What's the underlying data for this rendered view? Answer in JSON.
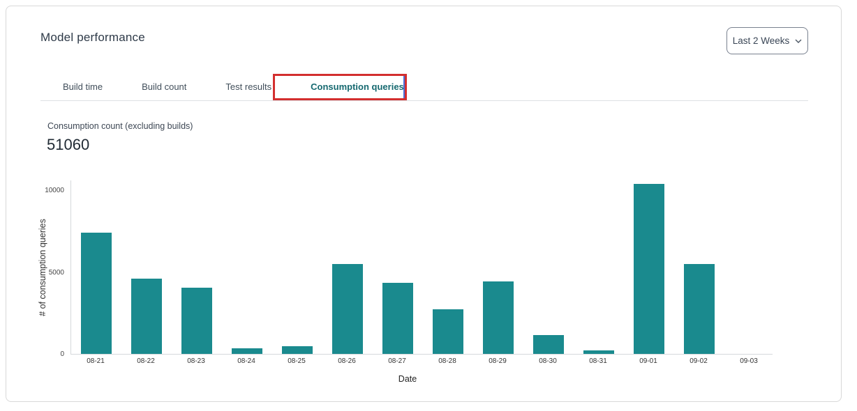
{
  "header": {
    "title": "Model performance"
  },
  "date_range_selector": {
    "value": "Last 2 Weeks",
    "icon": "chevron-down-icon"
  },
  "tabs": {
    "items": [
      {
        "label": "Build time",
        "active": false
      },
      {
        "label": "Build count",
        "active": false
      },
      {
        "label": "Test results",
        "active": false
      },
      {
        "label": "Consumption queries",
        "active": true
      }
    ]
  },
  "annotation": {
    "type": "highlight-box",
    "target": "Consumption queries tab",
    "color": "#d32f2f"
  },
  "metric": {
    "label": "Consumption count (excluding builds)",
    "value": "51060"
  },
  "colors": {
    "bar": "#1a8a8e",
    "active_tab_text": "#166970",
    "card_border": "#d8d8d8",
    "axis_line": "#d5d8db",
    "annotation_red": "#d32f2f"
  },
  "chart_data": {
    "type": "bar",
    "title": "",
    "categories": [
      "08-21",
      "08-22",
      "08-23",
      "08-24",
      "08-25",
      "08-26",
      "08-27",
      "08-28",
      "08-29",
      "08-30",
      "08-31",
      "09-01",
      "09-02",
      "09-03"
    ],
    "values": [
      7400,
      4600,
      4050,
      330,
      450,
      5480,
      4350,
      2730,
      4430,
      1140,
      220,
      10390,
      5490,
      0
    ],
    "xlabel": "Date",
    "ylabel": "# of consumption queries",
    "yticks": [
      0,
      5000,
      10000
    ],
    "ylim": [
      0,
      10640
    ],
    "grid": false,
    "legend": false,
    "bar_color": "#1a8a8e"
  }
}
